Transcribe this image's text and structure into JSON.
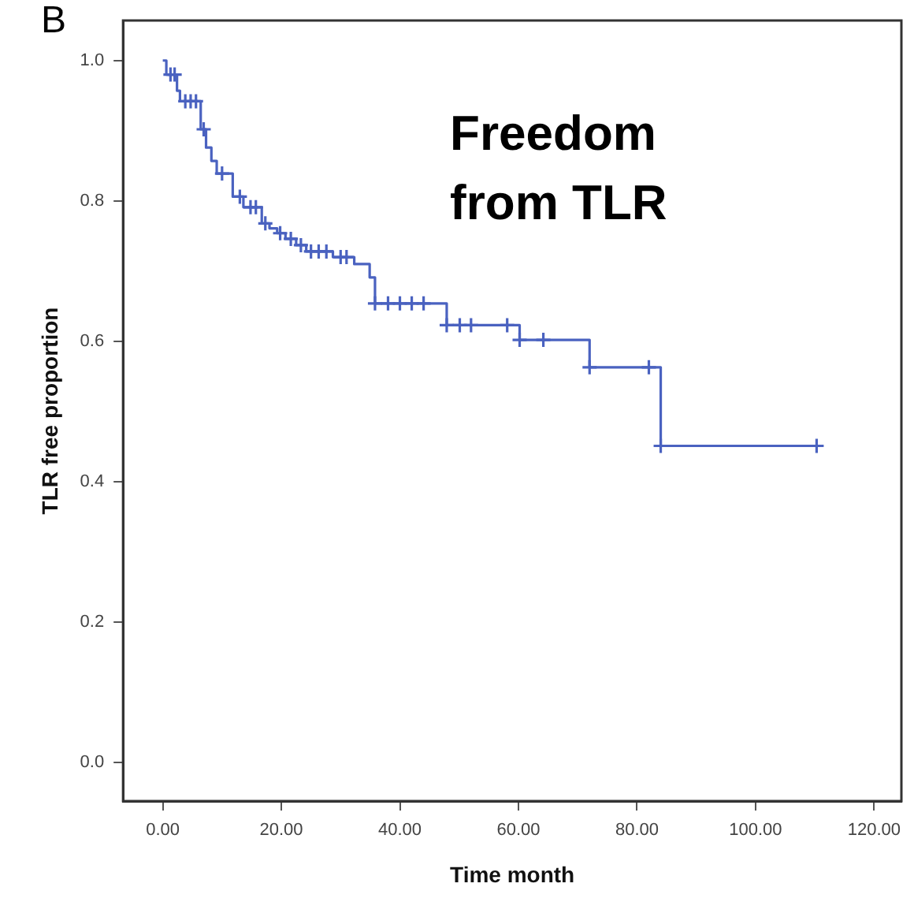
{
  "chart_data": {
    "type": "step",
    "xlabel": "Time month",
    "ylabel": "TLR free proportion",
    "annotations": [
      "B",
      "Freedom from TLR"
    ],
    "xlim": [
      -6.7,
      124.6
    ],
    "ylim": [
      -0.055,
      1.057
    ],
    "xticks": [
      {
        "value": 0,
        "label": "0.00"
      },
      {
        "value": 20,
        "label": "20.00"
      },
      {
        "value": 40,
        "label": "40.00"
      },
      {
        "value": 60,
        "label": "60.00"
      },
      {
        "value": 80,
        "label": "80.00"
      },
      {
        "value": 100,
        "label": "100.00"
      },
      {
        "value": 120,
        "label": "120.00"
      }
    ],
    "yticks": [
      {
        "value": 0,
        "label": "0.0"
      },
      {
        "value": 0.2,
        "label": "0.2"
      },
      {
        "value": 0.4,
        "label": "0.4"
      },
      {
        "value": 0.6,
        "label": "0.6"
      },
      {
        "value": 0.8,
        "label": "0.8"
      },
      {
        "value": 1,
        "label": "1.0"
      }
    ],
    "grid": false,
    "legend": false,
    "series": [
      {
        "type": "step",
        "color": "#4a62c0",
        "marker": "none",
        "x": [
          0,
          0.6,
          2.4,
          2.9,
          6.4,
          7.3,
          8.2,
          9.1,
          11.8,
          13.6,
          16.7,
          18.0,
          19.3,
          20.7,
          22.5,
          24.2,
          28.7,
          32.3,
          34.9,
          35.8,
          47.9,
          60.2,
          72.0,
          84.0,
          110.3
        ],
        "values": [
          1.0,
          0.98,
          0.957,
          0.942,
          0.902,
          0.876,
          0.857,
          0.839,
          0.806,
          0.791,
          0.768,
          0.761,
          0.754,
          0.746,
          0.737,
          0.728,
          0.72,
          0.71,
          0.691,
          0.654,
          0.623,
          0.602,
          0.563,
          0.451,
          0.451
        ]
      },
      {
        "type": "scatter",
        "color": "#4a62c0",
        "marker": "cross",
        "x": [
          1.3,
          2.0,
          3.8,
          4.7,
          5.6,
          6.9,
          10.0,
          13.0,
          14.8,
          15.7,
          17.3,
          19.8,
          21.6,
          23.3,
          25.0,
          26.3,
          27.6,
          30.0,
          31.0,
          35.8,
          38.0,
          40.0,
          42.0,
          44.0,
          47.9,
          50.1,
          52.0,
          58.1,
          60.2,
          64.2,
          72.0,
          82.0,
          84.0,
          110.3
        ],
        "values": [
          0.98,
          0.98,
          0.942,
          0.942,
          0.942,
          0.902,
          0.839,
          0.806,
          0.791,
          0.791,
          0.768,
          0.754,
          0.746,
          0.737,
          0.728,
          0.728,
          0.728,
          0.72,
          0.72,
          0.654,
          0.654,
          0.654,
          0.654,
          0.654,
          0.623,
          0.623,
          0.623,
          0.623,
          0.602,
          0.602,
          0.563,
          0.563,
          0.451,
          0.451
        ]
      }
    ]
  }
}
